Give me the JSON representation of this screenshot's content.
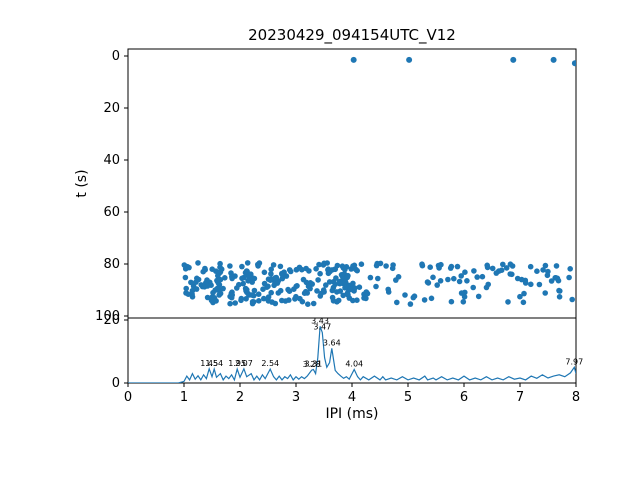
{
  "figure": {
    "title": "20230429_094154UTC_V12",
    "accent_color": "#1f77b4",
    "axis_color": "#000000",
    "background": "#ffffff"
  },
  "chart_data": {
    "type": "scatter+line",
    "title": "20230429_094154UTC_V12",
    "shared_xlabel": "IPI (ms)",
    "subplots": [
      {
        "id": "top",
        "type": "scatter",
        "ylabel": "t (s)",
        "xlim": [
          0,
          8
        ],
        "ylim": [
          0,
          100
        ],
        "y_inverted": true,
        "yticks": [
          0,
          20,
          40,
          60,
          80,
          100
        ],
        "outlier_points": [
          [
            4.03,
            1.5
          ],
          [
            5.02,
            1.5
          ],
          [
            6.88,
            1.5
          ],
          [
            7.6,
            1.5
          ],
          [
            7.98,
            2.8
          ]
        ],
        "band": {
          "x_min": 1.0,
          "x_max": 8.0,
          "y_min": 79.5,
          "y_max": 95.5,
          "count": 340,
          "left_fraction": 0.68,
          "split_x": 4.1,
          "seed": 20230429,
          "note": "dense uniform scatter band, denser left of split_x"
        }
      },
      {
        "id": "bottom",
        "type": "line",
        "xlabel": "IPI (ms)",
        "xlim": [
          0,
          8
        ],
        "ylim": [
          0,
          20
        ],
        "yticks": [
          0,
          20
        ],
        "xticks": [
          0,
          1,
          2,
          3,
          4,
          5,
          6,
          7,
          8
        ],
        "line": [
          [
            0,
            0
          ],
          [
            0.9,
            0
          ],
          [
            1.0,
            0.5
          ],
          [
            1.05,
            2.2
          ],
          [
            1.1,
            1
          ],
          [
            1.15,
            3
          ],
          [
            1.2,
            1.2
          ],
          [
            1.25,
            2.3
          ],
          [
            1.3,
            1
          ],
          [
            1.35,
            2.6
          ],
          [
            1.4,
            1.4
          ],
          [
            1.45,
            4.5
          ],
          [
            1.5,
            2
          ],
          [
            1.54,
            4.4
          ],
          [
            1.58,
            1.8
          ],
          [
            1.65,
            3
          ],
          [
            1.7,
            1
          ],
          [
            1.75,
            2.2
          ],
          [
            1.8,
            1.4
          ],
          [
            1.85,
            2.6
          ],
          [
            1.9,
            1
          ],
          [
            1.95,
            4.4
          ],
          [
            2.0,
            1.8
          ],
          [
            2.07,
            4.5
          ],
          [
            2.12,
            2
          ],
          [
            2.2,
            3
          ],
          [
            2.25,
            1
          ],
          [
            2.3,
            2.2
          ],
          [
            2.35,
            1
          ],
          [
            2.4,
            2.6
          ],
          [
            2.45,
            1.4
          ],
          [
            2.54,
            4.4
          ],
          [
            2.6,
            2
          ],
          [
            2.65,
            1
          ],
          [
            2.7,
            2.2
          ],
          [
            2.75,
            1
          ],
          [
            2.8,
            2
          ],
          [
            2.85,
            1.4
          ],
          [
            2.9,
            2.6
          ],
          [
            2.95,
            1
          ],
          [
            3.0,
            2
          ],
          [
            3.05,
            1.2
          ],
          [
            3.1,
            2
          ],
          [
            3.15,
            1.4
          ],
          [
            3.2,
            2.2
          ],
          [
            3.28,
            4.1
          ],
          [
            3.31,
            4.3
          ],
          [
            3.35,
            3
          ],
          [
            3.39,
            8
          ],
          [
            3.43,
            18
          ],
          [
            3.47,
            16
          ],
          [
            3.51,
            8
          ],
          [
            3.55,
            5
          ],
          [
            3.6,
            6.5
          ],
          [
            3.64,
            11
          ],
          [
            3.7,
            4
          ],
          [
            3.75,
            3
          ],
          [
            3.8,
            2.2
          ],
          [
            3.85,
            1.5
          ],
          [
            3.9,
            2
          ],
          [
            3.95,
            1.2
          ],
          [
            4.04,
            4.3
          ],
          [
            4.1,
            2
          ],
          [
            4.15,
            1
          ],
          [
            4.2,
            2
          ],
          [
            4.3,
            1
          ],
          [
            4.4,
            2.2
          ],
          [
            4.5,
            1
          ],
          [
            4.55,
            2
          ],
          [
            4.6,
            1
          ],
          [
            4.7,
            1.6
          ],
          [
            4.8,
            1
          ],
          [
            4.9,
            2
          ],
          [
            5.0,
            1
          ],
          [
            5.1,
            1.6
          ],
          [
            5.2,
            1
          ],
          [
            5.3,
            2.2
          ],
          [
            5.35,
            1
          ],
          [
            5.45,
            1.6
          ],
          [
            5.5,
            1
          ],
          [
            5.6,
            2
          ],
          [
            5.7,
            1
          ],
          [
            5.8,
            1.6
          ],
          [
            5.9,
            1
          ],
          [
            6.0,
            2.2
          ],
          [
            6.1,
            1
          ],
          [
            6.2,
            1.6
          ],
          [
            6.3,
            1
          ],
          [
            6.4,
            2
          ],
          [
            6.5,
            1
          ],
          [
            6.6,
            1.6
          ],
          [
            6.7,
            1
          ],
          [
            6.8,
            2
          ],
          [
            6.9,
            1.2
          ],
          [
            7.0,
            1.6
          ],
          [
            7.1,
            1
          ],
          [
            7.2,
            2.2
          ],
          [
            7.3,
            1.5
          ],
          [
            7.4,
            2.6
          ],
          [
            7.5,
            1.6
          ],
          [
            7.6,
            2.2
          ],
          [
            7.7,
            2.6
          ],
          [
            7.8,
            2
          ],
          [
            7.9,
            3.2
          ],
          [
            7.97,
            5
          ],
          [
            8.0,
            3
          ]
        ],
        "annotations": [
          {
            "x": 1.45,
            "y": 4.5,
            "label": "1.45"
          },
          {
            "x": 1.54,
            "y": 4.4,
            "label": "1.54"
          },
          {
            "x": 1.95,
            "y": 4.4,
            "label": "1.95"
          },
          {
            "x": 2.07,
            "y": 4.5,
            "label": "2.07"
          },
          {
            "x": 2.54,
            "y": 4.4,
            "label": "2.54"
          },
          {
            "x": 3.28,
            "y": 4.1,
            "label": "3.28"
          },
          {
            "x": 3.31,
            "y": 4.3,
            "label": "3.31"
          },
          {
            "x": 3.43,
            "y": 18,
            "label": "3.43"
          },
          {
            "x": 3.47,
            "y": 16,
            "label": "3.47"
          },
          {
            "x": 3.64,
            "y": 11,
            "label": "3.64"
          },
          {
            "x": 4.04,
            "y": 4.3,
            "label": "4.04"
          },
          {
            "x": 7.97,
            "y": 5,
            "label": "7.97"
          }
        ]
      }
    ]
  }
}
